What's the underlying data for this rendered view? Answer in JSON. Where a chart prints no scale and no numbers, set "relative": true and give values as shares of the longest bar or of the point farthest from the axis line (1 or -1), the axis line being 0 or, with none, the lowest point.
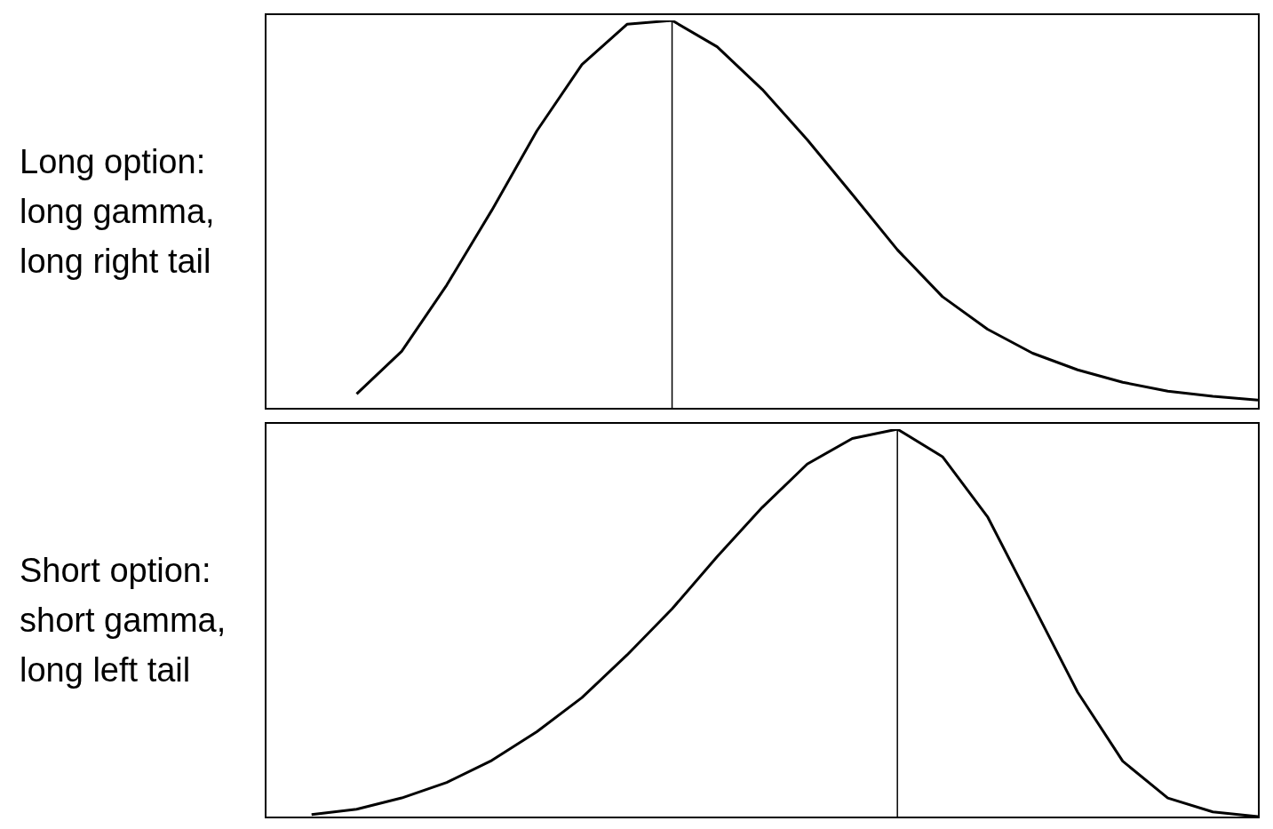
{
  "chart_data": [
    {
      "type": "line",
      "annotations": [
        "Long option: long gamma, long right tail"
      ],
      "relative": true,
      "color": "#000000",
      "categories": [
        null,
        null,
        null,
        null,
        null,
        null,
        null,
        null,
        null,
        null,
        null,
        null,
        null,
        null,
        null,
        null,
        null,
        null,
        null,
        null,
        null,
        null,
        null
      ],
      "values": [
        null,
        null,
        0.036,
        0.146,
        0.317,
        0.51,
        0.715,
        0.886,
        0.99,
        1,
        0.932,
        0.822,
        0.692,
        0.551,
        0.408,
        0.287,
        0.203,
        0.141,
        0.098,
        0.066,
        0.043,
        0.03,
        0.02
      ]
    },
    {
      "type": "line",
      "annotations": [
        "Short option: short gamma, long left tail"
      ],
      "relative": true,
      "color": "#000000",
      "categories": [
        null,
        null,
        null,
        null,
        null,
        null,
        null,
        null,
        null,
        null,
        null,
        null,
        null,
        null,
        null,
        null,
        null,
        null,
        null,
        null,
        null,
        null,
        null
      ],
      "values": [
        null,
        0.005,
        0.019,
        0.048,
        0.088,
        0.145,
        0.219,
        0.307,
        0.417,
        0.536,
        0.671,
        0.798,
        0.91,
        0.976,
        1,
        0.929,
        0.774,
        0.548,
        0.321,
        0.143,
        0.048,
        0.012,
        0
      ]
    }
  ]
}
